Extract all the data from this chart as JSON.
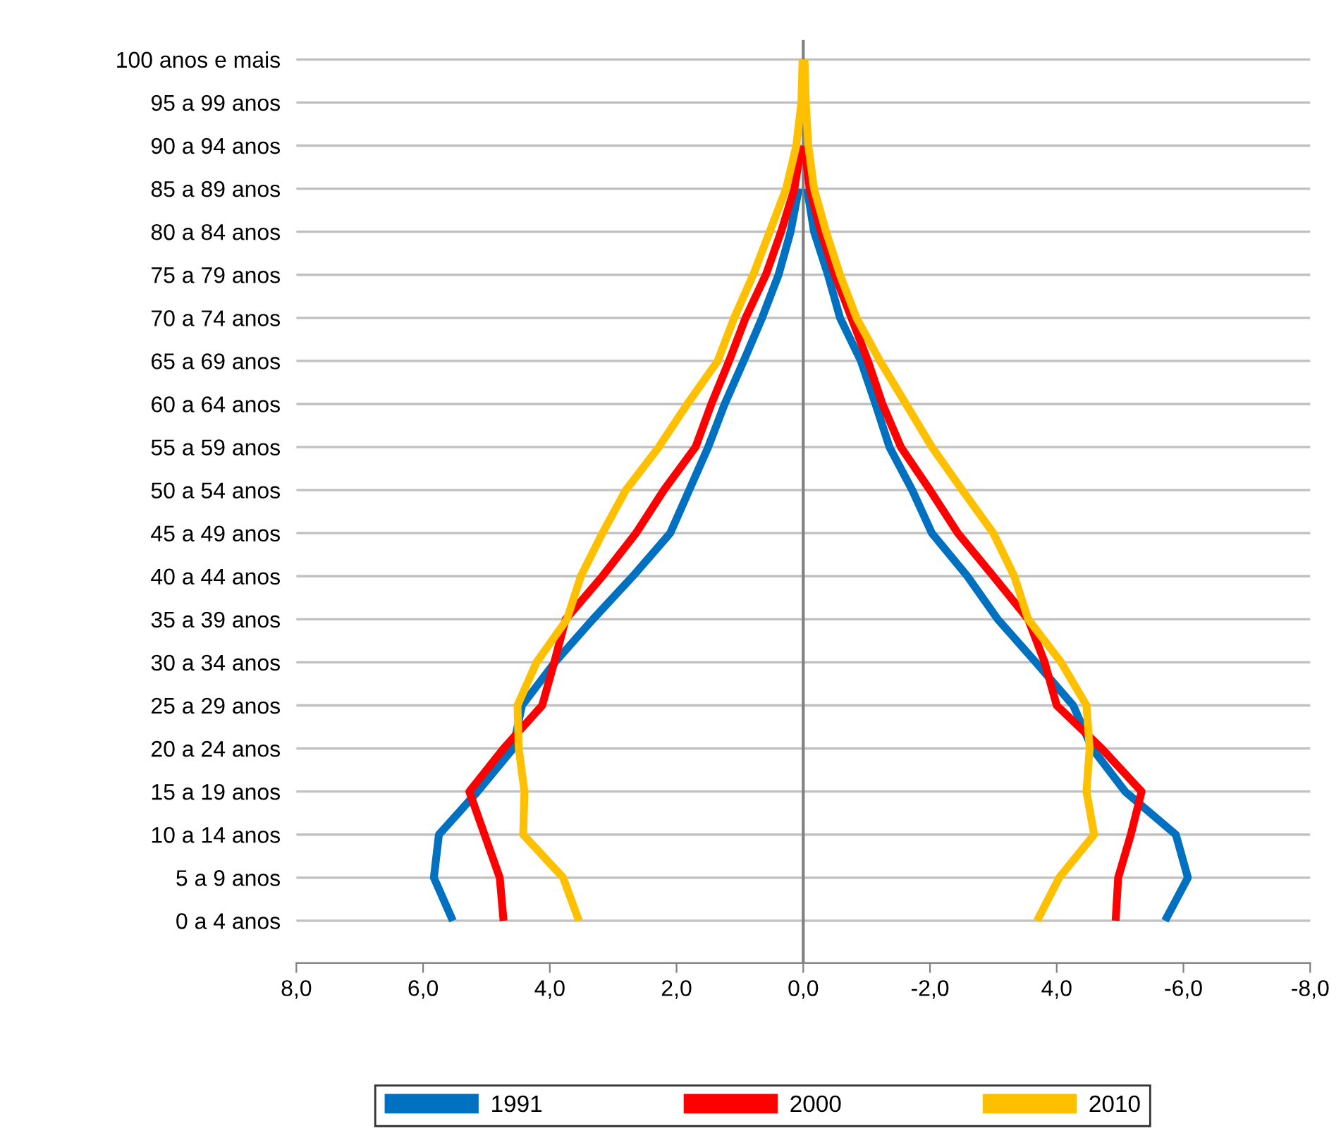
{
  "chart_data": {
    "type": "line",
    "orientation": "horizontal",
    "categories": [
      "100 anos e mais",
      "95 a 99 anos",
      "90 a 94 anos",
      "85 a 89 anos",
      "80 a 84 anos",
      "75 a 79 anos",
      "70 a 74 anos",
      "65 a 69 anos",
      "60 a 64 anos",
      "55 a 59 anos",
      "50 a 54 anos",
      "45 a 49 anos",
      "40 a 44 anos",
      "35 a 39 anos",
      "30 a 34 anos",
      "25 a 29 anos",
      "20 a 24 anos",
      "15 a 19 anos",
      "10 a 14 anos",
      "5 a 9 anos",
      "0 a 4 anos"
    ],
    "series": [
      {
        "name": "1991",
        "color": "#0070c0",
        "values": [
          null,
          null,
          null,
          0.07,
          0.2,
          0.39,
          0.65,
          0.94,
          1.24,
          1.5,
          1.8,
          2.1,
          2.69,
          3.32,
          3.92,
          4.44,
          4.58,
          5.14,
          5.75,
          5.83,
          5.53
        ]
      },
      {
        "color": "#0070c0",
        "values": [
          null,
          null,
          null,
          -0.06,
          -0.17,
          -0.39,
          -0.58,
          -0.91,
          -1.14,
          -1.36,
          -1.72,
          -2.03,
          -2.59,
          -3.07,
          -3.67,
          -4.26,
          -4.56,
          -5.08,
          -5.88,
          -6.07,
          -5.71
        ]
      },
      {
        "name": "2000",
        "color": "#ff0000",
        "values": [
          null,
          null,
          0.03,
          0.14,
          0.35,
          0.59,
          0.91,
          1.17,
          1.45,
          1.7,
          2.2,
          2.64,
          3.17,
          3.75,
          3.93,
          4.12,
          4.73,
          5.27,
          5.03,
          4.79,
          4.73
        ]
      },
      {
        "color": "#ff0000",
        "values": [
          null,
          null,
          -0.02,
          -0.1,
          -0.28,
          -0.5,
          -0.76,
          -1.02,
          -1.25,
          -1.54,
          -2.0,
          -2.44,
          -3.0,
          -3.55,
          -3.81,
          -4.0,
          -4.71,
          -5.34,
          -5.17,
          -4.97,
          -4.93
        ]
      },
      {
        "name": "2010",
        "color": "#ffc000",
        "values": [
          0.01,
          0.03,
          0.11,
          0.27,
          0.53,
          0.79,
          1.09,
          1.35,
          1.83,
          2.28,
          2.8,
          3.17,
          3.51,
          3.73,
          4.21,
          4.51,
          4.49,
          4.4,
          4.42,
          3.79,
          3.54
        ]
      },
      {
        "color": "#ffc000",
        "values": [
          -0.02,
          -0.04,
          -0.08,
          -0.17,
          -0.36,
          -0.58,
          -0.84,
          -1.21,
          -1.62,
          -2.03,
          -2.51,
          -3.0,
          -3.33,
          -3.55,
          -4.07,
          -4.47,
          -4.52,
          -4.47,
          -4.59,
          -4.04,
          -3.69
        ]
      }
    ],
    "xlim": [
      8,
      -8
    ],
    "xticks": [
      {
        "value": 8,
        "label": "8,0"
      },
      {
        "value": 6,
        "label": "6,0"
      },
      {
        "value": 4,
        "label": "4,0"
      },
      {
        "value": 2,
        "label": "2,0"
      },
      {
        "value": 0,
        "label": "0,0"
      },
      {
        "value": -2,
        "label": "-2,0"
      },
      {
        "value": -4,
        "label": "4,0"
      },
      {
        "value": -6,
        "label": "-6,0"
      },
      {
        "value": -8,
        "label": "-8,0"
      }
    ],
    "grid": "y",
    "legend": "bottom",
    "marker": "none",
    "line_style": "solid"
  }
}
